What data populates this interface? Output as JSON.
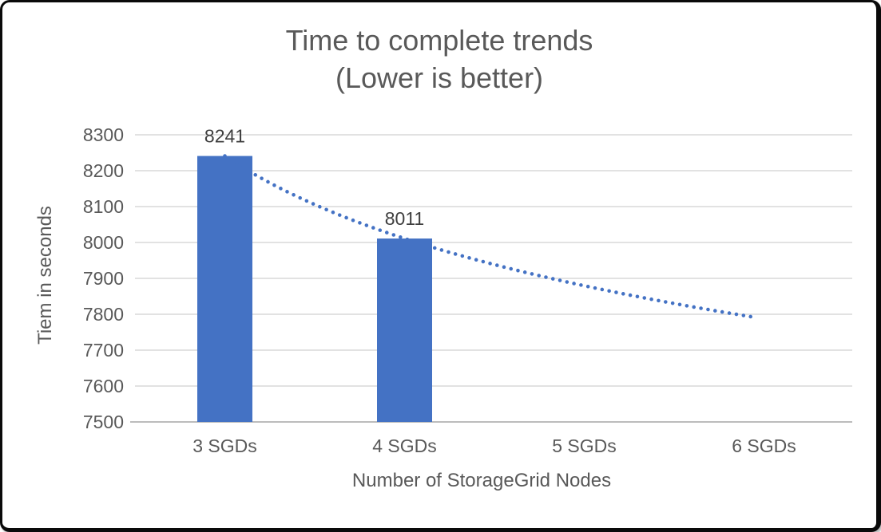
{
  "window": {
    "border_color": "#0a0a0a",
    "background": "#ffffff"
  },
  "chart_data": {
    "type": "bar",
    "title": "Time to complete trends",
    "subtitle": "(Lower is better)",
    "xlabel": "Number of StorageGrid Nodes",
    "ylabel": "Tiem in seconds",
    "categories": [
      "3 SGDs",
      "4 SGDs",
      "5 SGDs",
      "6 SGDs"
    ],
    "values": [
      8241,
      8011,
      null,
      null
    ],
    "data_labels": [
      "8241",
      "8011"
    ],
    "ylim": [
      7500,
      8300
    ],
    "yticks": [
      7500,
      7600,
      7700,
      7800,
      7900,
      8000,
      8100,
      8200,
      8300
    ],
    "grid": true,
    "legend": "none",
    "bar_color": "#4472c4",
    "trendline": {
      "type": "power",
      "style": "dotted",
      "color": "#4472c4",
      "points": [
        8241,
        8011,
        7880,
        7788
      ]
    },
    "colors": {
      "title": "#595959",
      "tick_label": "#595959",
      "category_label": "#595959",
      "data_label": "#3f3f3f",
      "gridline": "#d9d9d9",
      "axis_line": "#a6a6a6"
    }
  }
}
